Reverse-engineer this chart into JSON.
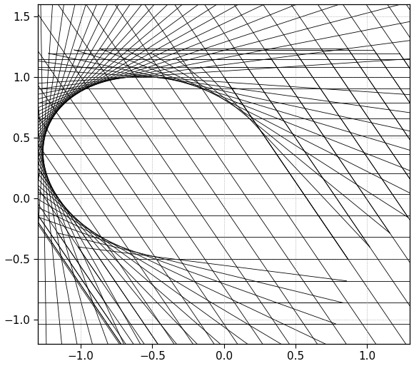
{
  "xlim": [
    -1.3,
    1.3
  ],
  "ylim": [
    -1.2,
    1.6
  ],
  "xticks": [
    -1,
    -0.5,
    0,
    0.5,
    1
  ],
  "yticks": [
    -1,
    -0.5,
    0,
    0.5,
    1,
    1.5
  ],
  "grid_color": "#888888",
  "line_color": "#000000",
  "line_width": 0.6,
  "n_lines": 50,
  "background_color": "#ffffff",
  "figsize": [
    5.8,
    5.13
  ],
  "dpi": 100
}
